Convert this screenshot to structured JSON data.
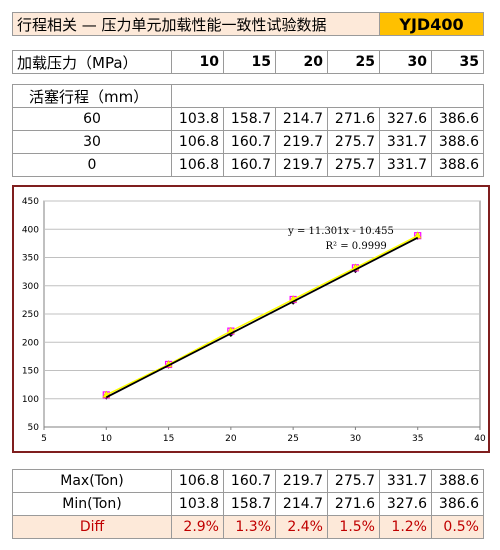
{
  "header": {
    "title": "行程相关 — 压力单元加载性能一致性试验数据",
    "model": "YJD400"
  },
  "pressure_row": {
    "label": "加载压力（MPa）",
    "values": [
      "10",
      "15",
      "20",
      "25",
      "30",
      "35"
    ]
  },
  "stroke_header": "活塞行程（mm）",
  "stroke_rows": [
    {
      "label": "60",
      "values": [
        "103.8",
        "158.7",
        "214.7",
        "271.6",
        "327.6",
        "386.6"
      ]
    },
    {
      "label": "30",
      "values": [
        "106.8",
        "160.7",
        "219.7",
        "275.7",
        "331.7",
        "388.6"
      ]
    },
    {
      "label": "0",
      "values": [
        "106.8",
        "160.7",
        "219.7",
        "275.7",
        "331.7",
        "388.6"
      ]
    }
  ],
  "summary_rows": [
    {
      "label": "Max(Ton)",
      "values": [
        "106.8",
        "160.7",
        "219.7",
        "275.7",
        "331.7",
        "388.6"
      ]
    },
    {
      "label": "Min(Ton)",
      "values": [
        "103.8",
        "158.7",
        "214.7",
        "271.6",
        "327.6",
        "386.6"
      ]
    },
    {
      "label": "Diff",
      "values": [
        "2.9%",
        "1.3%",
        "2.4%",
        "1.5%",
        "1.2%",
        "0.5%"
      ]
    }
  ],
  "chart_data": {
    "type": "scatter",
    "x": [
      10,
      15,
      20,
      25,
      30,
      35
    ],
    "series": [
      {
        "values": [
          103.8,
          158.7,
          214.7,
          271.6,
          327.6,
          386.6
        ],
        "color": "#000000",
        "marker": "diamond"
      },
      {
        "values": [
          106.8,
          160.7,
          219.7,
          275.7,
          331.7,
          388.6
        ],
        "color": "#ff00ff",
        "marker": "square"
      },
      {
        "values": [
          106.8,
          160.7,
          219.7,
          275.7,
          331.7,
          388.6
        ],
        "color": "#ffff00",
        "marker": "triangle"
      }
    ],
    "trendline": {
      "slope": 11.301,
      "intercept": -10.455,
      "color": "#000000"
    },
    "annotations": [
      "y = 11.301x - 10.455",
      "R² = 0.9999"
    ],
    "xlim": [
      5,
      40
    ],
    "ylim": [
      50,
      450
    ],
    "xticks": [
      5,
      10,
      15,
      20,
      25,
      30,
      35,
      40
    ],
    "yticks": [
      50,
      100,
      150,
      200,
      250,
      300,
      350,
      400,
      450
    ],
    "grid": "horizontal",
    "legend": "none"
  }
}
